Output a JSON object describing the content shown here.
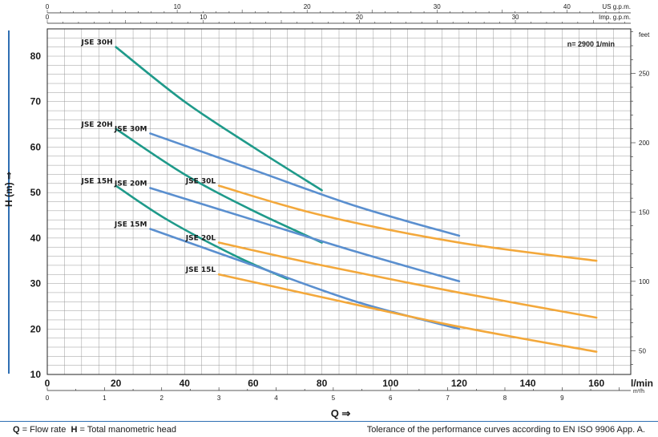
{
  "chart_data": {
    "type": "line",
    "title": "",
    "speed_note": "n= 2900  1/min",
    "x_label": "Q ⇒",
    "y_label": "H (m) ⇒",
    "x_unit_main": "l/min",
    "x_unit_m3h": "m³/h",
    "x_unit_usgpm": "US g.p.m.",
    "x_unit_impgpm": "Imp. g.p.m.",
    "y_unit_feet": "feet",
    "xlim": [
      0,
      170
    ],
    "ylim": [
      10,
      86
    ],
    "grid": true,
    "x_ticks": [
      "0",
      "20",
      "40",
      "60",
      "80",
      "100",
      "120",
      "140",
      "160"
    ],
    "y_ticks": [
      "10",
      "20",
      "30",
      "40",
      "50",
      "60",
      "70",
      "80"
    ],
    "m3h_ticks": [
      "0",
      "1",
      "2",
      "3",
      "4",
      "5",
      "6",
      "7",
      "8",
      "9"
    ],
    "usgpm_ticks": [
      "0",
      "10",
      "20",
      "30",
      "40"
    ],
    "impgpm_ticks": [
      "0",
      "10",
      "20",
      "30",
      "40"
    ],
    "feet_ticks": [
      "50",
      "100",
      "150",
      "200",
      "250"
    ],
    "series": [
      {
        "name": "JSE 30H",
        "color": "#1f9a8a",
        "x": [
          20,
          40,
          60,
          80
        ],
        "y": [
          82,
          70,
          60,
          50.5
        ]
      },
      {
        "name": "JSE 20H",
        "color": "#1f9a8a",
        "x": [
          20,
          40,
          60,
          80
        ],
        "y": [
          64,
          54,
          46,
          39
        ]
      },
      {
        "name": "JSE 15H",
        "color": "#1f9a8a",
        "x": [
          20,
          35,
          55,
          70
        ],
        "y": [
          51.5,
          44,
          36,
          31
        ]
      },
      {
        "name": "JSE 30M",
        "color": "#5a8fcf",
        "x": [
          30,
          60,
          90,
          120
        ],
        "y": [
          63,
          55,
          47,
          40.5
        ]
      },
      {
        "name": "JSE 20M",
        "color": "#5a8fcf",
        "x": [
          30,
          60,
          90,
          120
        ],
        "y": [
          51,
          44,
          37,
          30.5
        ]
      },
      {
        "name": "JSE 15M",
        "color": "#5a8fcf",
        "x": [
          30,
          60,
          90,
          120
        ],
        "y": [
          42,
          34,
          26,
          20
        ]
      },
      {
        "name": "JSE 30L",
        "color": "#f3a83b",
        "x": [
          50,
          80,
          120,
          160
        ],
        "y": [
          51.5,
          45,
          39,
          35
        ]
      },
      {
        "name": "JSE 20L",
        "color": "#f3a83b",
        "x": [
          50,
          80,
          120,
          160
        ],
        "y": [
          39,
          34,
          28,
          22.5
        ]
      },
      {
        "name": "JSE 15L",
        "color": "#f3a83b",
        "x": [
          50,
          80,
          120,
          160
        ],
        "y": [
          32,
          27,
          20.5,
          15
        ]
      }
    ]
  },
  "footer": {
    "q_key": "Q",
    "q_desc": " = Flow rate",
    "h_key": "H",
    "h_desc": " = Total manometric head",
    "right_text": "Tolerance of the performance curves according to EN ISO 9906 App. A."
  }
}
